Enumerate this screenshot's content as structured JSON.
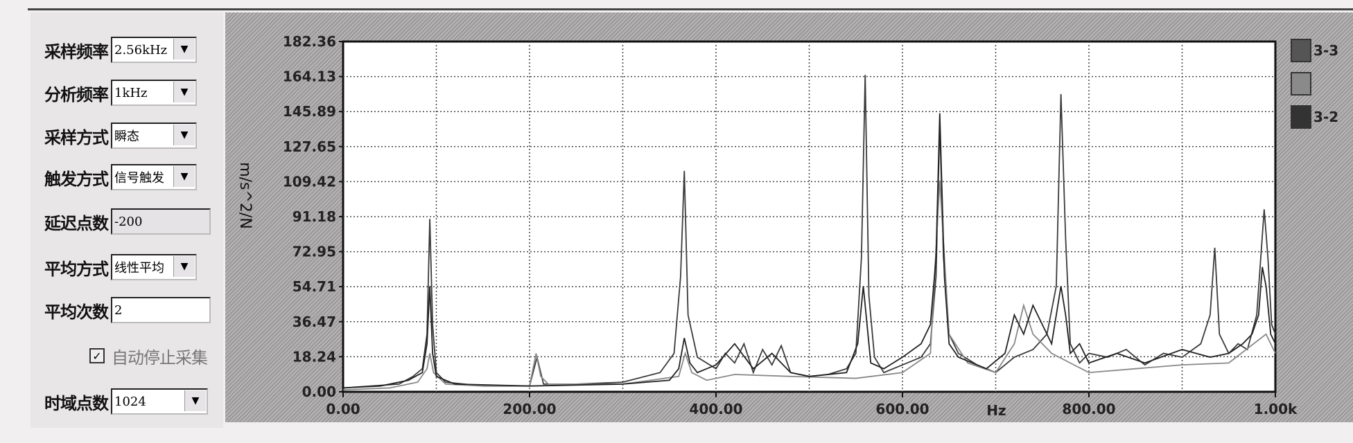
{
  "panel": {
    "fields": [
      {
        "label": "采样频率",
        "value": "2.56kHz",
        "type": "dropdown"
      },
      {
        "label": "分析频率",
        "value": "1kHz",
        "type": "dropdown"
      },
      {
        "label": "采样方式",
        "value": "瞬态",
        "type": "dropdown"
      },
      {
        "label": "触发方式",
        "value": "信号触发",
        "type": "dropdown"
      },
      {
        "label": "延迟点数",
        "value": "-200",
        "type": "readonly"
      },
      {
        "label": "平均方式",
        "value": "线性平均",
        "type": "dropdown"
      },
      {
        "label": "平均次数",
        "value": "2",
        "type": "input"
      }
    ],
    "auto_stop": {
      "label": "自动停止采集",
      "checked": true
    },
    "time_points": {
      "label": "时域点数",
      "value": "1024"
    }
  },
  "legend": [
    {
      "label": "3-3",
      "color": "#555555"
    },
    {
      "label": "",
      "color": "#8a8a8a"
    },
    {
      "label": "3-2",
      "color": "#333333"
    }
  ],
  "chart_data": {
    "type": "line",
    "ylabel": "m/s^2/N",
    "xlabel": "Hz",
    "xlim": [
      0,
      1000
    ],
    "ylim": [
      0,
      182.36
    ],
    "grid": true,
    "xticks": [
      "0.00",
      "200.00",
      "400.00",
      "600.00",
      "800.00",
      "1.00k"
    ],
    "yticks": [
      "0.00",
      "18.24",
      "36.47",
      "54.71",
      "72.95",
      "91.18",
      "109.42",
      "127.65",
      "145.89",
      "164.13",
      "182.36"
    ],
    "series": [
      {
        "name": "3-3",
        "color": "#3a3a3a",
        "x": [
          0,
          30,
          60,
          75,
          85,
          90,
          93,
          96,
          100,
          110,
          150,
          200,
          208,
          215,
          250,
          300,
          340,
          355,
          362,
          366,
          370,
          380,
          400,
          410,
          420,
          430,
          440,
          450,
          460,
          470,
          480,
          500,
          520,
          540,
          550,
          556,
          560,
          564,
          570,
          580,
          600,
          620,
          630,
          636,
          640,
          644,
          650,
          660,
          680,
          700,
          720,
          740,
          755,
          765,
          770,
          775,
          780,
          790,
          800,
          820,
          840,
          860,
          880,
          900,
          920,
          930,
          935,
          940,
          950,
          960,
          970,
          980,
          988,
          992,
          996,
          1000
        ],
        "y": [
          2,
          3,
          4,
          8,
          12,
          30,
          90,
          35,
          10,
          5,
          3,
          3,
          18,
          4,
          4,
          5,
          10,
          20,
          60,
          115,
          40,
          18,
          12,
          20,
          15,
          25,
          10,
          22,
          14,
          24,
          10,
          8,
          9,
          12,
          20,
          70,
          165,
          50,
          18,
          10,
          14,
          18,
          25,
          60,
          140,
          70,
          30,
          20,
          14,
          10,
          18,
          22,
          30,
          55,
          155,
          80,
          25,
          15,
          20,
          18,
          22,
          14,
          20,
          18,
          25,
          40,
          75,
          30,
          20,
          25,
          22,
          40,
          95,
          70,
          35,
          30
        ]
      },
      {
        "name": "",
        "color": "#888888",
        "x": [
          0,
          50,
          80,
          90,
          93,
          97,
          110,
          150,
          200,
          207,
          212,
          220,
          300,
          360,
          367,
          374,
          390,
          420,
          480,
          550,
          600,
          630,
          640,
          650,
          670,
          700,
          720,
          730,
          740,
          760,
          780,
          800,
          850,
          900,
          950,
          990,
          1000
        ],
        "y": [
          1,
          2,
          5,
          12,
          20,
          10,
          4,
          3,
          3,
          20,
          8,
          4,
          4,
          8,
          20,
          10,
          6,
          9,
          8,
          7,
          10,
          20,
          110,
          30,
          15,
          10,
          25,
          45,
          30,
          20,
          15,
          10,
          12,
          14,
          15,
          30,
          20
        ]
      },
      {
        "name": "3-2",
        "color": "#222222",
        "x": [
          0,
          40,
          70,
          85,
          90,
          93,
          96,
          100,
          120,
          200,
          300,
          350,
          360,
          366,
          372,
          380,
          400,
          420,
          440,
          460,
          480,
          500,
          540,
          552,
          558,
          561,
          566,
          580,
          600,
          620,
          630,
          636,
          640,
          645,
          650,
          660,
          690,
          710,
          720,
          730,
          740,
          750,
          760,
          770,
          775,
          780,
          790,
          800,
          830,
          860,
          900,
          930,
          950,
          965,
          975,
          982,
          986,
          990,
          995,
          1000
        ],
        "y": [
          2,
          3,
          6,
          10,
          25,
          55,
          20,
          8,
          4,
          3,
          4,
          6,
          12,
          28,
          15,
          10,
          14,
          25,
          12,
          20,
          10,
          8,
          10,
          25,
          55,
          40,
          15,
          12,
          18,
          25,
          35,
          70,
          145,
          60,
          25,
          18,
          12,
          20,
          40,
          30,
          45,
          35,
          25,
          55,
          40,
          20,
          25,
          15,
          20,
          15,
          22,
          18,
          20,
          25,
          30,
          40,
          65,
          55,
          30,
          25
        ]
      }
    ]
  }
}
